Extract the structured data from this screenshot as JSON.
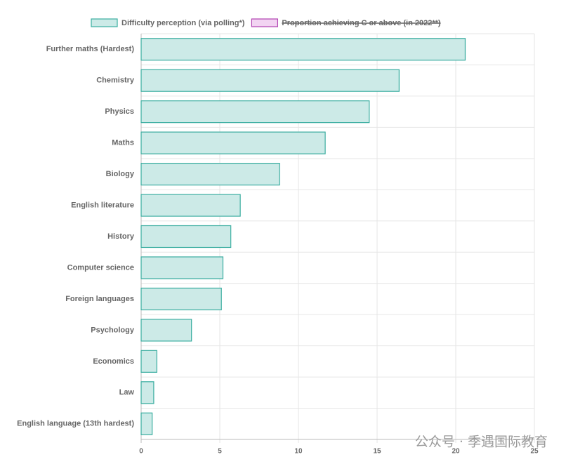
{
  "chart_data": {
    "type": "bar",
    "orientation": "horizontal",
    "categories": [
      "Further maths (Hardest)",
      "Chemistry",
      "Physics",
      "Maths",
      "Biology",
      "English literature",
      "History",
      "Computer science",
      "Foreign languages",
      "Psychology",
      "Economics",
      "Law",
      "English language (13th hardest)"
    ],
    "series": [
      {
        "name": "Difficulty perception (via polling*)",
        "color": "#3aada0",
        "fill": "#cceae7",
        "hidden": false,
        "values": [
          20.6,
          16.4,
          14.5,
          11.7,
          8.8,
          6.3,
          5.7,
          5.2,
          5.1,
          3.2,
          1.0,
          0.8,
          0.7
        ]
      },
      {
        "name": "Proportion achieving C or above (in 2022**)",
        "color": "#b040b0",
        "fill": "#f2d4f2",
        "hidden": true,
        "values": [
          null,
          null,
          null,
          null,
          null,
          null,
          null,
          null,
          null,
          null,
          null,
          null,
          null
        ]
      }
    ],
    "xlim": [
      0,
      25
    ],
    "xticks": [
      0,
      5,
      10,
      15,
      20,
      25
    ],
    "grid": true,
    "legend": "top",
    "watermark": "公众号 · 季遇国际教育"
  }
}
